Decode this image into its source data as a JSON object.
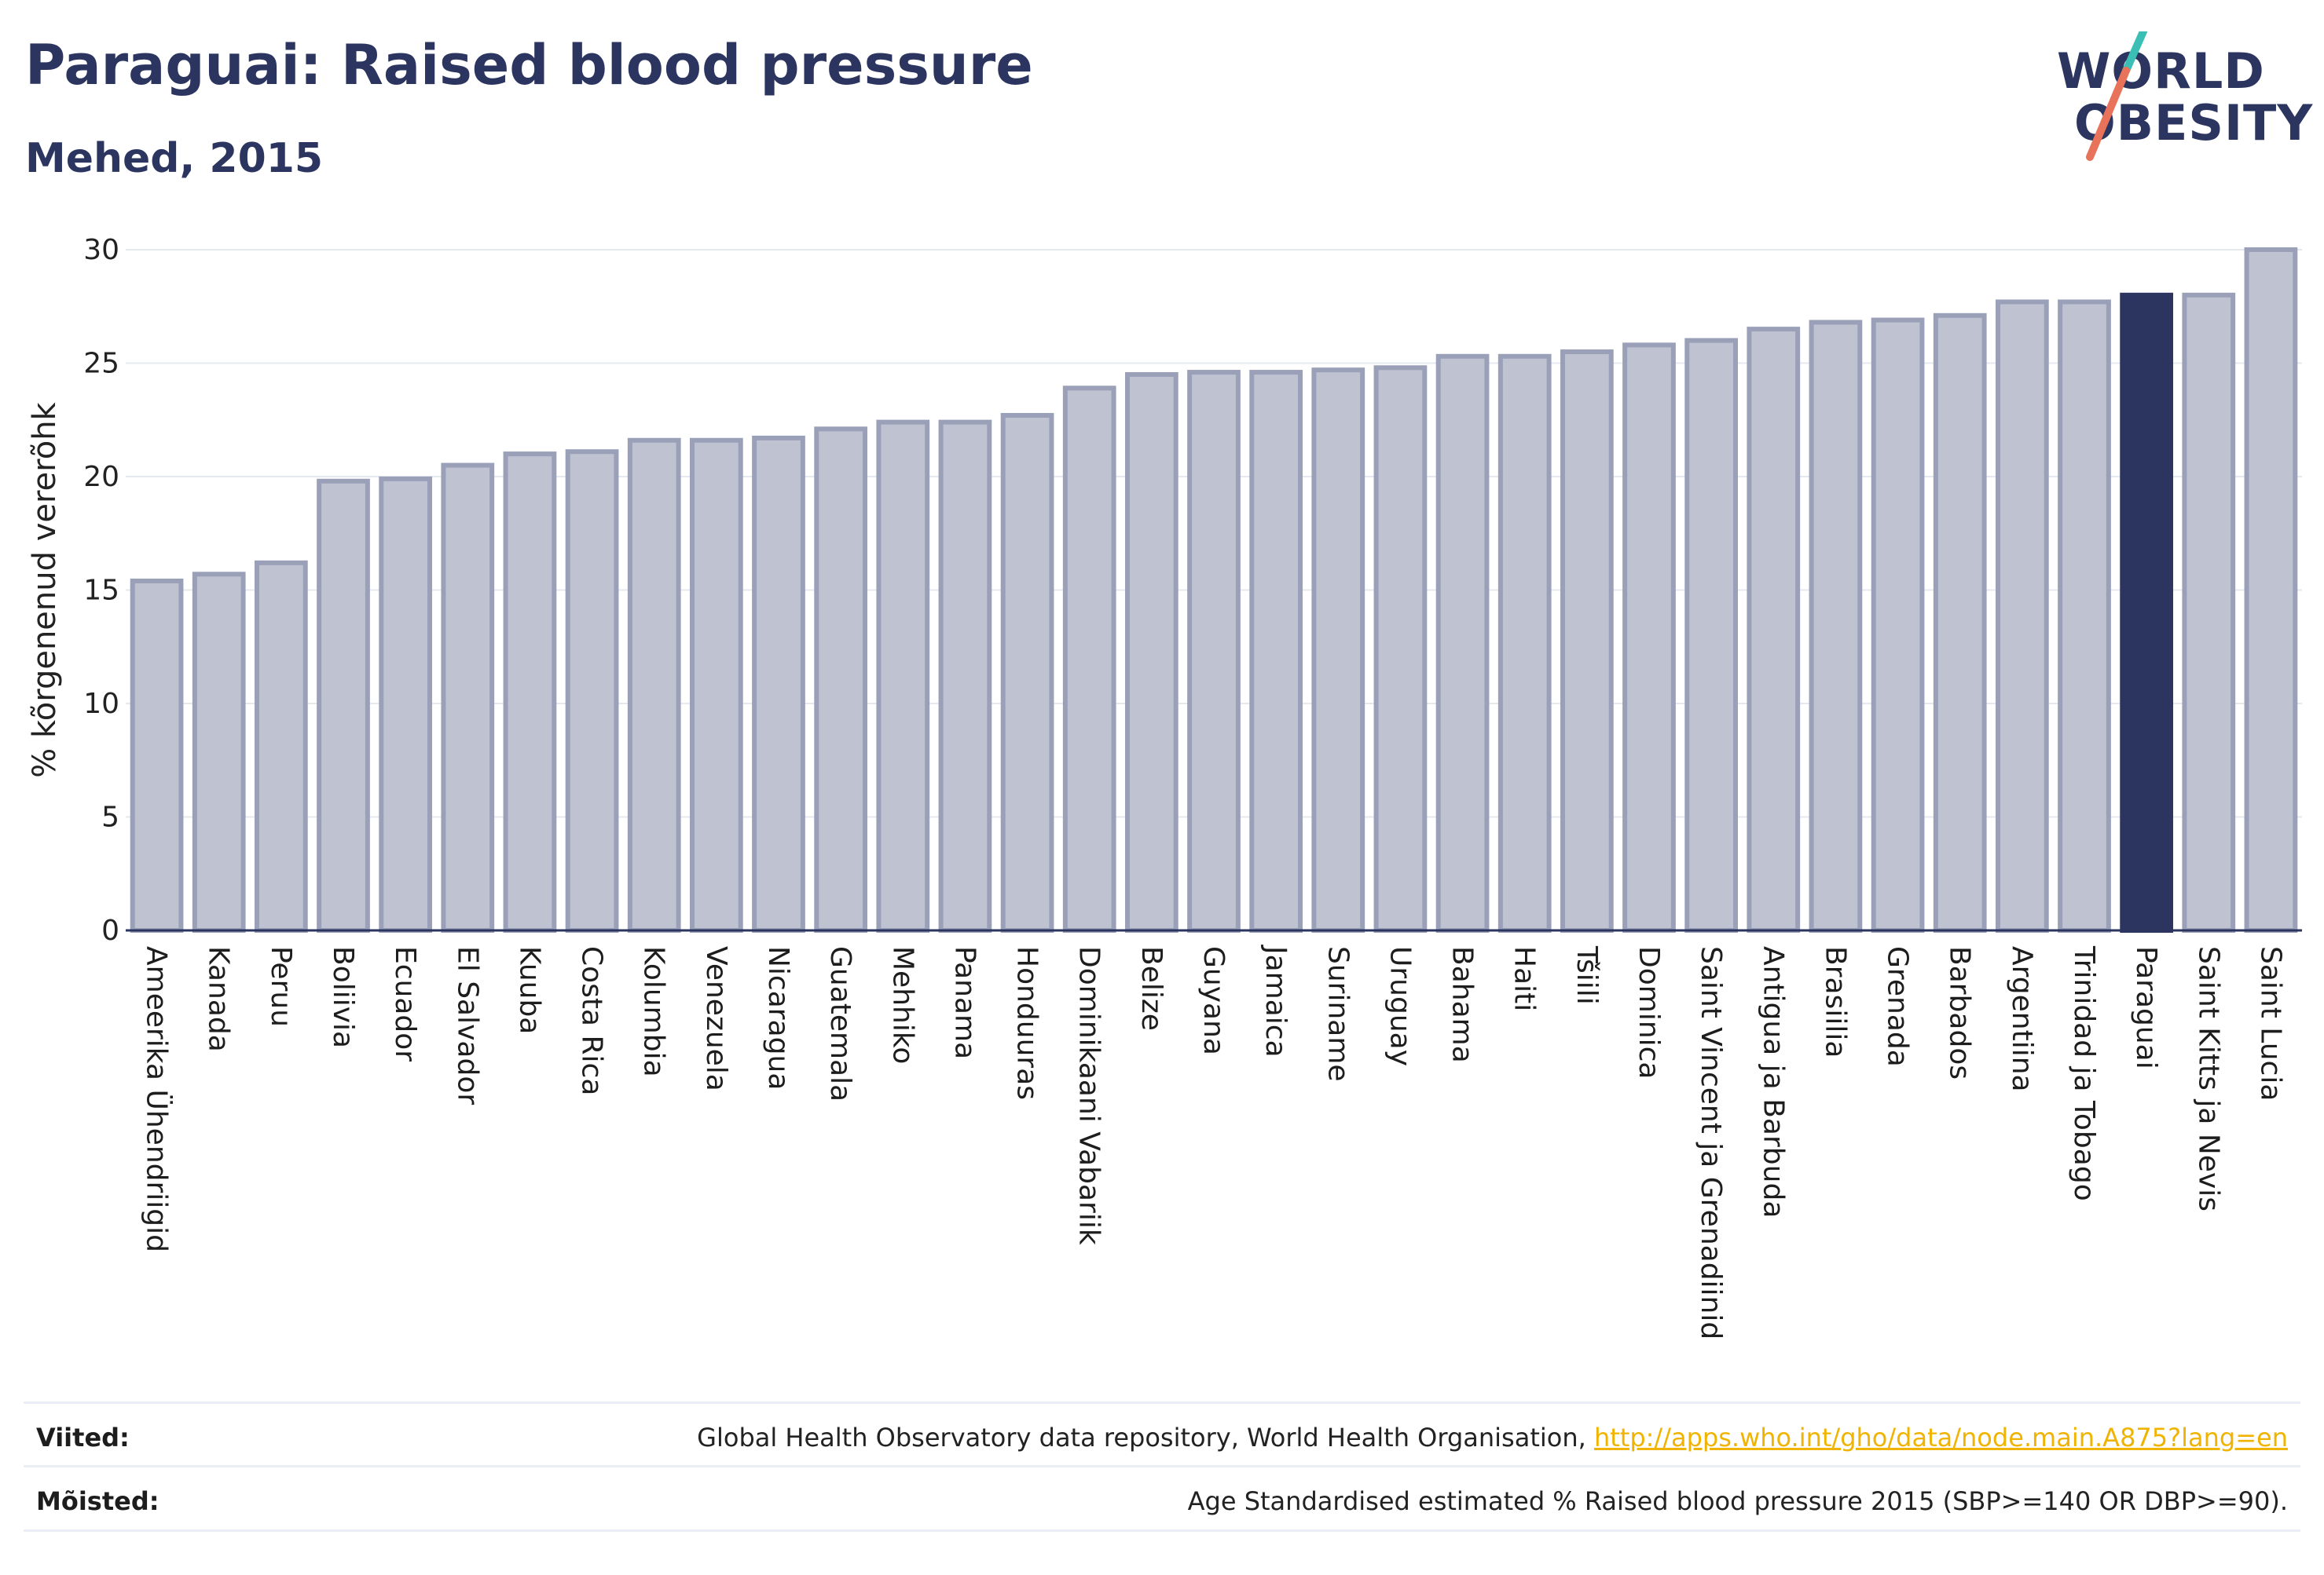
{
  "header": {
    "title": "Paraguai: Raised blood pressure",
    "subtitle": "Mehed, 2015"
  },
  "logo": {
    "line1": "WORLD",
    "line2": "OBESITY",
    "colors": {
      "text": "#2b3560",
      "slash_top": "#3bbfb4",
      "slash_bottom": "#e8735a"
    }
  },
  "chart_data": {
    "type": "bar",
    "ylabel": "% kõrgenenud vererõhk",
    "xlabel": "",
    "ylim": [
      0,
      30
    ],
    "yticks": [
      0,
      5,
      10,
      15,
      20,
      25,
      30
    ],
    "grid": true,
    "highlight": "Paraguai",
    "colors": {
      "bar": "#bfc2d0",
      "bar_edge": "#9aa0b8",
      "highlight": "#2b3560",
      "axis": "#2b3560"
    },
    "categories": [
      "Ameerika Ühendriigid",
      "Kanada",
      "Peruu",
      "Boliivia",
      "Ecuador",
      "El Salvador",
      "Kuuba",
      "Costa Rica",
      "Kolumbia",
      "Venezuela",
      "Nicaragua",
      "Guatemala",
      "Mehhiko",
      "Panama",
      "Honduuras",
      "Dominikaani Vabariik",
      "Belize",
      "Guyana",
      "Jamaica",
      "Suriname",
      "Uruguay",
      "Bahama",
      "Haiti",
      "Tšiili",
      "Dominica",
      "Saint Vincent ja Grenadiinid",
      "Antigua ja Barbuda",
      "Brasiilia",
      "Grenada",
      "Barbados",
      "Argentiina",
      "Trinidad ja Tobago",
      "Paraguai",
      "Saint Kitts ja Nevis",
      "Saint Lucia"
    ],
    "values": [
      15.4,
      15.7,
      16.2,
      19.8,
      19.9,
      20.5,
      21.0,
      21.1,
      21.6,
      21.6,
      21.7,
      22.1,
      22.4,
      22.4,
      22.7,
      23.9,
      24.5,
      24.6,
      24.6,
      24.7,
      24.8,
      25.3,
      25.3,
      25.5,
      25.8,
      26.0,
      26.5,
      26.8,
      26.9,
      27.1,
      27.7,
      27.7,
      28.0,
      28.0,
      30.0
    ]
  },
  "footer": {
    "sources_label": "Viited:",
    "sources_text": "Global Health Observatory data repository, World Health Organisation, ",
    "sources_link": "http://apps.who.int/gho/data/node.main.A875?lang=en",
    "definitions_label": "Mõisted:",
    "definitions_text": "Age Standardised estimated % Raised blood pressure 2015 (SBP>=140 OR DBP>=90)."
  }
}
